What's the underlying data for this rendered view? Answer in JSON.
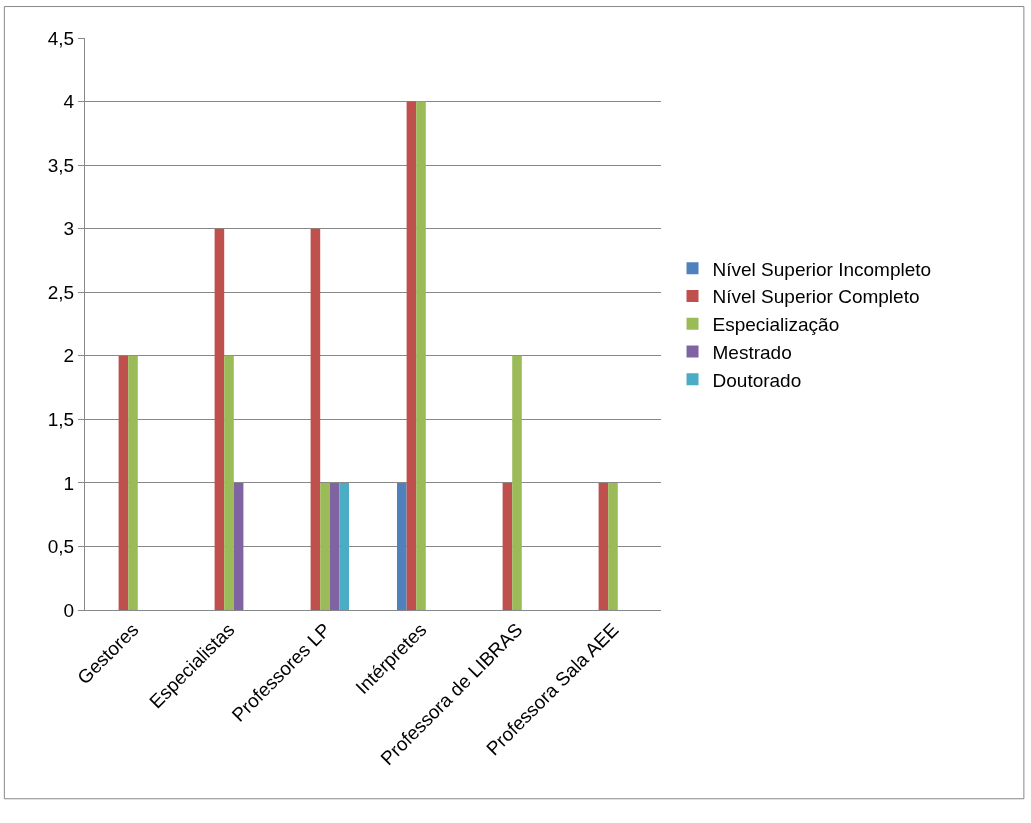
{
  "chart_data": {
    "type": "bar",
    "categories": [
      "Gestores",
      "Especialistas",
      "Professores LP",
      "Intérpretes",
      "Professora de LIBRAS",
      "Professora Sala AEE"
    ],
    "series": [
      {
        "name": "Nível Superior Incompleto",
        "color": "#4f81bd",
        "values": [
          0,
          0,
          0,
          1,
          0,
          0
        ]
      },
      {
        "name": "Nível Superior Completo",
        "color": "#c0504d",
        "values": [
          2,
          3,
          3,
          4,
          1,
          1
        ]
      },
      {
        "name": "Especialização",
        "color": "#9bbb59",
        "values": [
          2,
          2,
          1,
          4,
          2,
          1
        ]
      },
      {
        "name": "Mestrado",
        "color": "#8064a2",
        "values": [
          0,
          1,
          1,
          0,
          0,
          0
        ]
      },
      {
        "name": "Doutorado",
        "color": "#4bacc6",
        "values": [
          0,
          0,
          1,
          0,
          0,
          0
        ]
      }
    ],
    "ylim": [
      0,
      4.5
    ],
    "yticks": [
      0,
      {
        "value": 0.5,
        "label": "0,5"
      },
      1,
      {
        "value": 1.5,
        "label": "1,5"
      },
      2,
      {
        "value": 2.5,
        "label": "2,5"
      },
      3,
      {
        "value": 3.5,
        "label": "3,5"
      },
      4,
      {
        "value": 4.5,
        "label": "4,5"
      }
    ],
    "grid": "y",
    "legend": "right"
  }
}
